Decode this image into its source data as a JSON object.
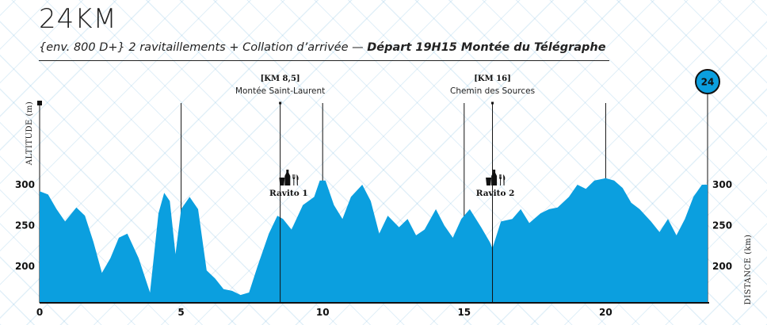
{
  "header": {
    "title": "24KM",
    "subtitle_italic": "{env. 800 D+} 2 ravitaillements + Collation d’arrivée — ",
    "subtitle_bold": "Départ 19H15 Montée du Télégraphe"
  },
  "chart_data": {
    "type": "area",
    "ylabel": "ALTITUDE (m)",
    "ylabel_right": "DISTANCE (km)",
    "xlim": [
      0,
      23.6
    ],
    "ylim": [
      150,
      310
    ],
    "x_ticks": [
      "0",
      "5",
      "10",
      "15",
      "20"
    ],
    "y_ticks": [
      "300",
      "250",
      "200"
    ],
    "fill_color": "#0b9fdf",
    "finish_badge": "24",
    "markers": [
      {
        "km": 8.5,
        "title": "[KM 8,5]",
        "subtitle": "Montée Saint-Laurent"
      },
      {
        "km": 16,
        "title": "[KM 16]",
        "subtitle": "Chemin des Sources"
      }
    ],
    "aid_stations": [
      {
        "km": 8.8,
        "label": "Ravito 1"
      },
      {
        "km": 16.1,
        "label": "Ravito 2"
      }
    ],
    "profile": {
      "x": [
        0,
        0.3,
        0.6,
        0.9,
        1.3,
        1.6,
        1.9,
        2.2,
        2.5,
        2.8,
        3.1,
        3.5,
        3.9,
        4.2,
        4.4,
        4.6,
        4.8,
        5.0,
        5.3,
        5.6,
        5.9,
        6.2,
        6.5,
        6.8,
        7.1,
        7.4,
        7.7,
        8.1,
        8.4,
        8.6,
        8.9,
        9.3,
        9.7,
        9.9,
        10.1,
        10.4,
        10.7,
        11.0,
        11.4,
        11.7,
        12.0,
        12.3,
        12.7,
        13.0,
        13.3,
        13.6,
        14.0,
        14.3,
        14.6,
        14.9,
        15.2,
        15.6,
        15.9,
        16.0,
        16.3,
        16.7,
        17.0,
        17.3,
        17.7,
        18.0,
        18.3,
        18.7,
        19.0,
        19.3,
        19.6,
        20.0,
        20.3,
        20.6,
        20.9,
        21.2,
        21.6,
        21.9,
        22.2,
        22.5,
        22.8,
        23.1,
        23.4,
        23.6
      ],
      "y": [
        292,
        288,
        270,
        255,
        272,
        262,
        230,
        192,
        210,
        235,
        240,
        210,
        168,
        265,
        290,
        280,
        215,
        270,
        285,
        270,
        195,
        185,
        172,
        170,
        165,
        168,
        200,
        240,
        262,
        258,
        245,
        275,
        285,
        305,
        305,
        275,
        258,
        285,
        300,
        280,
        240,
        262,
        248,
        258,
        238,
        245,
        270,
        250,
        235,
        258,
        270,
        248,
        230,
        222,
        255,
        258,
        270,
        253,
        265,
        270,
        272,
        285,
        300,
        295,
        305,
        308,
        305,
        296,
        278,
        270,
        255,
        242,
        258,
        238,
        258,
        285,
        300,
        300
      ]
    }
  }
}
